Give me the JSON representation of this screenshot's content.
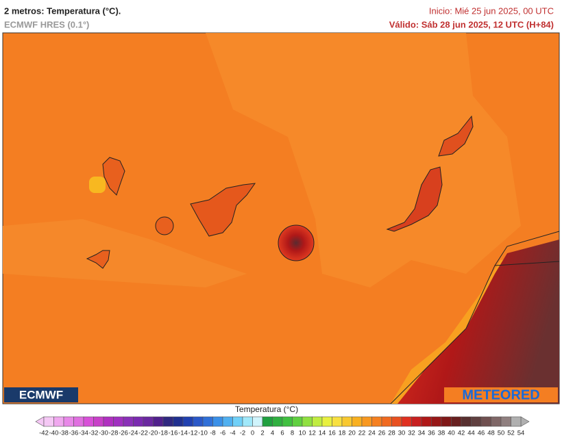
{
  "header": {
    "title": "2 metros: Temperatura (°C).",
    "model": "ECMWF HRES (0.1°)",
    "start": "Inicio: Mié 25 jun 2025, 00 UTC",
    "valid": "Válido: Sáb 28 jun 2025, 12 UTC (H+84)"
  },
  "logos": {
    "left": "ECMWF",
    "right": "METEORED"
  },
  "colorbar": {
    "title": "Temperatura (°C)",
    "ticks": [
      -42,
      -40,
      -38,
      -36,
      -34,
      -32,
      -30,
      -28,
      -26,
      -24,
      -22,
      -20,
      -18,
      -16,
      -14,
      -12,
      -10,
      -8,
      -6,
      -4,
      -2,
      0,
      2,
      4,
      6,
      8,
      10,
      12,
      14,
      16,
      18,
      20,
      22,
      24,
      26,
      28,
      30,
      32,
      34,
      36,
      38,
      40,
      42,
      44,
      46,
      48,
      50,
      52,
      54
    ],
    "colors": [
      "#f5c8f5",
      "#f0a8ef",
      "#e888e8",
      "#e070e0",
      "#d850d8",
      "#c840c8",
      "#b030c0",
      "#a030c0",
      "#8a30b8",
      "#7a2ab0",
      "#6a28a0",
      "#50208c",
      "#302880",
      "#203090",
      "#2040b0",
      "#2a58c8",
      "#3070d8",
      "#3a90e8",
      "#50b0f0",
      "#70d0f8",
      "#a0e8fa",
      "#d0f4fc",
      "#20a040",
      "#30b040",
      "#40c040",
      "#60d040",
      "#90e040",
      "#c0ec40",
      "#e8f040",
      "#f8e040",
      "#f8c830",
      "#f8b020",
      "#f89820",
      "#f58020",
      "#f06a20",
      "#e85020",
      "#e03020",
      "#c82020",
      "#b01818",
      "#981818",
      "#801818",
      "#682020",
      "#583030",
      "#604040",
      "#705050",
      "#806868",
      "#908080",
      "#b0b0b0"
    ]
  }
}
